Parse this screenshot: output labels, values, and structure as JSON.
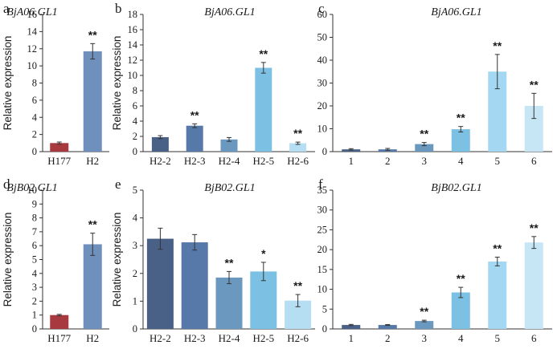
{
  "chart_data": [
    {
      "panel": "a",
      "type": "bar",
      "title": "BjA06.GL1",
      "ylabel": "Relative expression",
      "ylim": [
        0,
        16
      ],
      "yticks": [
        0,
        2,
        4,
        6,
        8,
        10,
        12,
        14,
        16
      ],
      "categories": [
        "H177",
        "H2"
      ],
      "values": [
        1.0,
        11.7
      ],
      "errors": [
        0.12,
        0.9
      ],
      "sig": [
        "",
        "**"
      ],
      "colors": [
        "#a83a3f",
        "#6f8fbd"
      ]
    },
    {
      "panel": "b",
      "type": "bar",
      "title": "BjA06.GL1",
      "ylabel": "Relative expression",
      "ylim": [
        0,
        18
      ],
      "yticks": [
        0,
        2,
        4,
        6,
        8,
        10,
        12,
        14,
        16,
        18
      ],
      "categories": [
        "H2-2",
        "H2-3",
        "H2-4",
        "H2-5",
        "H2-6"
      ],
      "values": [
        1.9,
        3.4,
        1.6,
        11.0,
        1.1
      ],
      "errors": [
        0.2,
        0.25,
        0.25,
        0.7,
        0.15
      ],
      "sig": [
        "",
        "**",
        "",
        "**",
        "**"
      ],
      "colors": [
        "#4a6187",
        "#5779aa",
        "#6b98bf",
        "#7cc1e3",
        "#b5def3"
      ]
    },
    {
      "panel": "c",
      "type": "bar",
      "title": "BjA06.GL1",
      "ylabel": "",
      "ylim": [
        0,
        60
      ],
      "yticks": [
        0,
        10,
        20,
        30,
        40,
        50,
        60
      ],
      "categories": [
        "1",
        "2",
        "3",
        "4",
        "5",
        "6"
      ],
      "values": [
        1.0,
        1.0,
        3.3,
        9.8,
        35.0,
        20.0
      ],
      "errors": [
        0.3,
        0.4,
        0.7,
        1.2,
        7.5,
        5.5
      ],
      "sig": [
        "",
        "",
        "**",
        "**",
        "**",
        "**"
      ],
      "colors": [
        "#4a6187",
        "#5779aa",
        "#6b98bf",
        "#7cc1e3",
        "#a4d7f1",
        "#c6e6f6"
      ]
    },
    {
      "panel": "d",
      "type": "bar",
      "title": "BjB02.GL1",
      "ylabel": "Relative expression",
      "ylim": [
        0,
        10
      ],
      "yticks": [
        0,
        1,
        2,
        3,
        4,
        5,
        6,
        7,
        8,
        9,
        10
      ],
      "categories": [
        "H177",
        "H2"
      ],
      "values": [
        1.0,
        6.1
      ],
      "errors": [
        0.05,
        0.8
      ],
      "sig": [
        "",
        "**"
      ],
      "colors": [
        "#a83a3f",
        "#6f8fbd"
      ]
    },
    {
      "panel": "e",
      "type": "bar",
      "title": "BjB02.GL1",
      "ylabel": "Relative expression",
      "ylim": [
        0,
        5
      ],
      "yticks": [
        0,
        1,
        2,
        3,
        4,
        5
      ],
      "categories": [
        "H2-2",
        "H2-3",
        "H2-4",
        "H2-5",
        "H2-6"
      ],
      "values": [
        3.25,
        3.12,
        1.85,
        2.07,
        1.02
      ],
      "errors": [
        0.38,
        0.28,
        0.22,
        0.33,
        0.22
      ],
      "sig": [
        "",
        "",
        "**",
        "*",
        "**"
      ],
      "colors": [
        "#4a6187",
        "#5779aa",
        "#6b98bf",
        "#7cc1e3",
        "#b5def3"
      ]
    },
    {
      "panel": "f",
      "type": "bar",
      "title": "BjB02.GL1",
      "ylabel": "",
      "ylim": [
        0,
        35
      ],
      "yticks": [
        0,
        5,
        10,
        15,
        20,
        25,
        30,
        35
      ],
      "categories": [
        "1",
        "2",
        "3",
        "4",
        "5",
        "6"
      ],
      "values": [
        1.0,
        1.0,
        2.0,
        9.2,
        17.0,
        21.8
      ],
      "errors": [
        0.15,
        0.1,
        0.2,
        1.3,
        1.1,
        1.5
      ],
      "sig": [
        "",
        "",
        "**",
        "**",
        "**",
        "**"
      ],
      "colors": [
        "#4a6187",
        "#5779aa",
        "#6b98bf",
        "#7cc1e3",
        "#a4d7f1",
        "#c6e6f6"
      ]
    }
  ]
}
